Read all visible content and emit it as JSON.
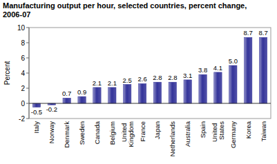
{
  "chart_data": {
    "type": "bar",
    "title": "Manufacturing output per hour, selected countries, percent change, 2006-07",
    "y_label": "Percent",
    "categories": [
      "Italy",
      "Norway",
      "Denmark",
      "Sweden",
      "Canada",
      "Belgium",
      "United Kingdom",
      "France",
      "Japan",
      "Netherlands",
      "Australia",
      "Spain",
      "United States",
      "Germany",
      "Korea",
      "Taiwan"
    ],
    "values": [
      -0.5,
      -0.2,
      0.7,
      0.9,
      2.1,
      2.1,
      2.5,
      2.6,
      2.8,
      2.8,
      3.1,
      3.8,
      4.1,
      5.0,
      8.7,
      8.7
    ],
    "value_labels": [
      "-0.5",
      "-0.2",
      "0.7",
      "0.9",
      "2.1",
      "2.1",
      "2.5",
      "2.6",
      "2.8",
      "2.8",
      "3.1",
      "3.8",
      "4.1",
      "5.0",
      "8.7",
      "8.7"
    ],
    "color": "#333399",
    "ylim": [
      -2,
      10
    ],
    "yticks": [
      -2,
      0,
      2,
      4,
      6,
      8,
      10
    ],
    "grid": false,
    "data_labels": true
  }
}
